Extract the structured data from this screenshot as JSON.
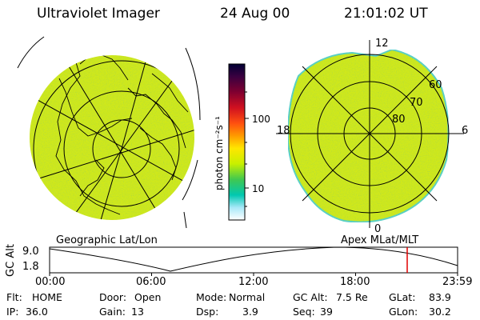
{
  "header": {
    "title": "Ultraviolet Imager",
    "date": "24 Aug 00",
    "time": "21:01:02 UT"
  },
  "left_panel": {
    "caption": "Geographic Lat/Lon"
  },
  "right_panel": {
    "caption": "Apex MLat/MLT",
    "mlt_labels": [
      "12",
      "18",
      "6",
      "0"
    ],
    "lat_labels": [
      "60",
      "70",
      "80"
    ]
  },
  "colorbar": {
    "unit_label": "photon cm⁻²s⁻¹",
    "tick_labels": [
      "100",
      "10"
    ],
    "colors": [
      "#000033",
      "#3a0040",
      "#800030",
      "#c00020",
      "#ff2020",
      "#ff9000",
      "#ffe000",
      "#c8f000",
      "#60d060",
      "#00c8a0",
      "#40d0f0",
      "#a8e8f8",
      "#ffffff"
    ]
  },
  "altitude_plot": {
    "ylabel": "GC Alt",
    "ytick_top": "9.0",
    "ytick_bottom": "1.8",
    "xticks": [
      "00:00",
      "06:00",
      "12:00",
      "18:00",
      "23:59"
    ],
    "current_time_hours": 21.02
  },
  "info": {
    "flt": {
      "label": "Flt:",
      "value": "HOME"
    },
    "ip": {
      "label": "IP:",
      "value": "36.0"
    },
    "door": {
      "label": "Door:",
      "value": "Open"
    },
    "gain": {
      "label": "Gain:",
      "value": "13"
    },
    "mode": {
      "label": "Mode:",
      "value": "Normal"
    },
    "dsp": {
      "label": "Dsp:",
      "value": "3.9"
    },
    "gcalt": {
      "label": "GC Alt:",
      "value": "7.5 Re"
    },
    "seq": {
      "label": "Seq:",
      "value": "39"
    },
    "glat": {
      "label": "GLat:",
      "value": "83.9"
    },
    "glon": {
      "label": "GLon:",
      "value": "30.2"
    }
  },
  "colors": {
    "image_fill": "#cfe81a",
    "image_edge": "#5ad0c8",
    "grid": "#000000",
    "marker": "#e00000"
  }
}
